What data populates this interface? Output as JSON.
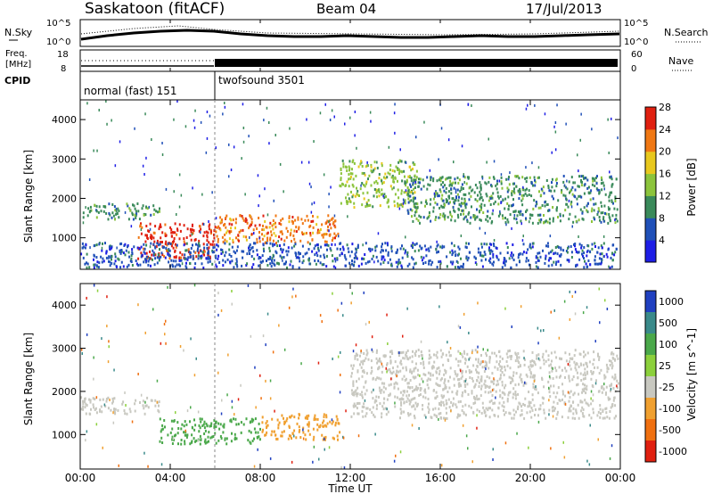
{
  "header": {
    "station": "Saskatoon (fitACF)",
    "beam": "Beam 04",
    "date": "17/Jul/2013"
  },
  "noise_panel": {
    "left_label": "N.Sky",
    "right_label": "N.Search",
    "left_ticks": [
      "10^5",
      "10^0"
    ],
    "right_ticks": [
      "10^5",
      "10^0"
    ]
  },
  "freq_panel": {
    "left_label_line1": "Freq.",
    "left_label_line2": "[MHz]",
    "right_label": "Nave",
    "left_ticks": [
      "18",
      "8"
    ],
    "right_ticks": [
      "60",
      "0"
    ]
  },
  "cpid_panel": {
    "label": "CPID",
    "segments": [
      {
        "label": "normal (fast) 151",
        "start_hour": 0,
        "end_hour": 6
      },
      {
        "label": "twofsound 3501",
        "start_hour": 6,
        "end_hour": 24
      }
    ]
  },
  "chart_data": [
    {
      "type": "heatmap",
      "title": "",
      "xlabel": "",
      "ylabel": "Slant Range [km]",
      "xlim": [
        0,
        24
      ],
      "ylim": [
        200,
        4500
      ],
      "yticks": [
        "1000",
        "2000",
        "3000",
        "4000"
      ],
      "colorbar": {
        "label": "Power [dB]",
        "ticks": [
          "4",
          "8",
          "12",
          "16",
          "20",
          "24",
          "28"
        ],
        "colors": [
          "#1e1ee6",
          "#2050b8",
          "#3a8a5a",
          "#8cc43c",
          "#e8c81e",
          "#f07814",
          "#e02010"
        ]
      },
      "bands": [
        {
          "t0": 0.0,
          "t1": 3.5,
          "r0": 1500,
          "r1": 1900,
          "level": 10
        },
        {
          "t0": 2.5,
          "t1": 6.0,
          "r0": 500,
          "r1": 1400,
          "level": 26
        },
        {
          "t0": 6.0,
          "t1": 11.5,
          "r0": 900,
          "r1": 1600,
          "level": 22
        },
        {
          "t0": 11.5,
          "t1": 15.0,
          "r0": 1800,
          "r1": 3000,
          "level": 14
        },
        {
          "t0": 14.5,
          "t1": 24.0,
          "r0": 1400,
          "r1": 2600,
          "level": 12
        },
        {
          "t0": 0.0,
          "t1": 24.0,
          "r0": 200,
          "r1": 900,
          "level": 6
        }
      ]
    },
    {
      "type": "heatmap",
      "title": "",
      "xlabel": "Time UT",
      "ylabel": "Slant Range [km]",
      "xlim": [
        0,
        24
      ],
      "ylim": [
        200,
        4500
      ],
      "yticks": [
        "1000",
        "2000",
        "3000",
        "4000"
      ],
      "xticks": [
        "00:00",
        "04:00",
        "08:00",
        "12:00",
        "16:00",
        "20:00",
        "00:00"
      ],
      "colorbar": {
        "label": "Velocity [m s^-1]",
        "ticks": [
          "1000",
          "500",
          "100",
          "25",
          "-25",
          "-100",
          "-500",
          "-1000"
        ],
        "colors": [
          "#2040c0",
          "#3a8a8a",
          "#4aa84a",
          "#8cd03c",
          "#c8c8c0",
          "#f0a030",
          "#f07010",
          "#e02010"
        ]
      },
      "bands": [
        {
          "t0": 0.0,
          "t1": 3.5,
          "r0": 1500,
          "r1": 1900,
          "level": "ground"
        },
        {
          "t0": 3.5,
          "t1": 8.0,
          "r0": 800,
          "r1": 1400,
          "level": 100
        },
        {
          "t0": 8.0,
          "t1": 11.5,
          "r0": 900,
          "r1": 1500,
          "level": -200
        },
        {
          "t0": 12.0,
          "t1": 24.0,
          "r0": 1400,
          "r1": 3000,
          "level": "ground"
        }
      ]
    }
  ]
}
